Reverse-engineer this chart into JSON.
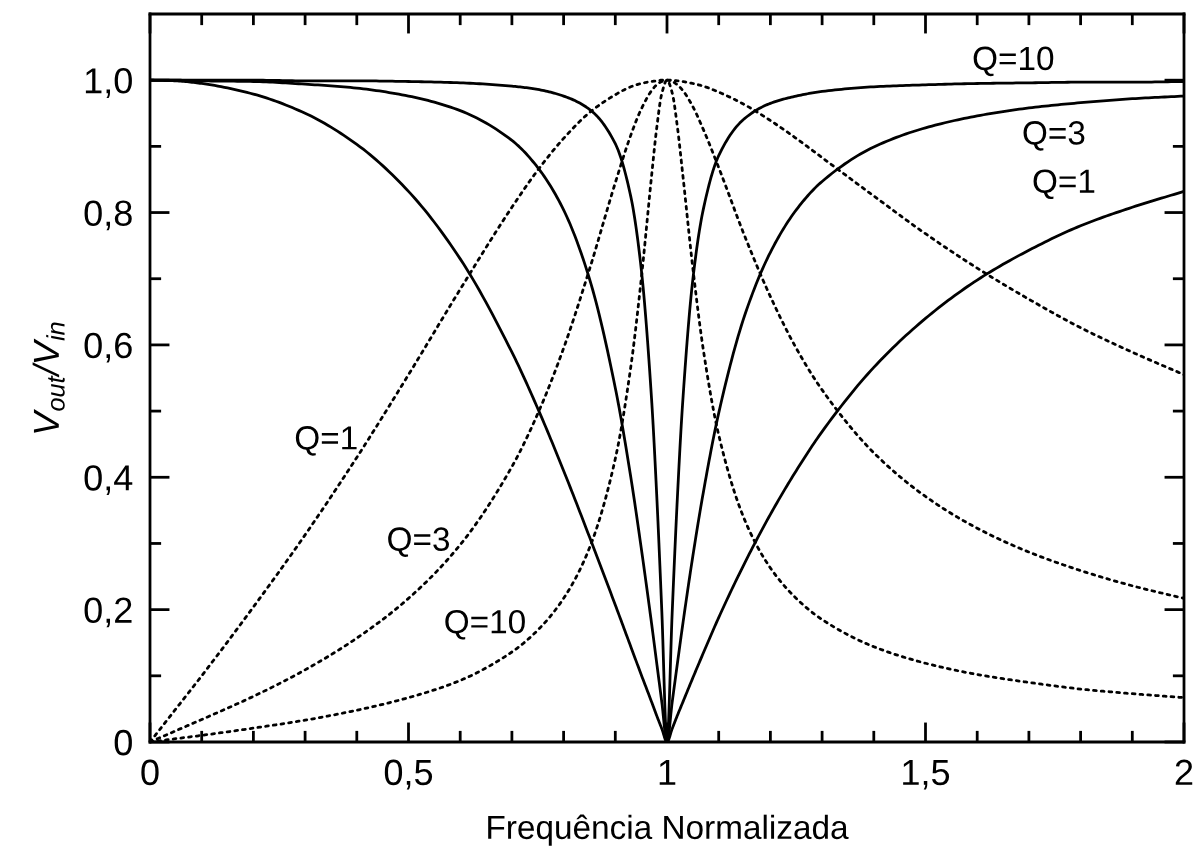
{
  "chart_data": {
    "type": "line",
    "xlabel": "Frequência Normalizada",
    "ylabel": "V$_{out}$/V$_{in}$",
    "xlim": [
      0,
      2
    ],
    "ylim": [
      0,
      1.1
    ],
    "xticks": [
      0,
      {
        "value": 0.1,
        "label": null
      },
      {
        "value": 0.2,
        "label": null
      },
      {
        "value": 0.3,
        "label": null
      },
      {
        "value": 0.4,
        "label": null
      },
      {
        "value": 0.5,
        "label": "0,5"
      },
      {
        "value": 0.6,
        "label": null
      },
      {
        "value": 0.7,
        "label": null
      },
      {
        "value": 0.8,
        "label": null
      },
      {
        "value": 0.9,
        "label": null
      },
      1,
      {
        "value": 1.1,
        "label": null
      },
      {
        "value": 1.2,
        "label": null
      },
      {
        "value": 1.3,
        "label": null
      },
      {
        "value": 1.4,
        "label": null
      },
      {
        "value": 1.5,
        "label": "1,5"
      },
      {
        "value": 1.6,
        "label": null
      },
      {
        "value": 1.7,
        "label": null
      },
      {
        "value": 1.8,
        "label": null
      },
      {
        "value": 1.9,
        "label": null
      },
      2
    ],
    "yticks": [
      0,
      {
        "value": 0.1,
        "label": null
      },
      {
        "value": 0.2,
        "label": "0,2"
      },
      {
        "value": 0.3,
        "label": null
      },
      {
        "value": 0.4,
        "label": "0,4"
      },
      {
        "value": 0.5,
        "label": null
      },
      {
        "value": 0.6,
        "label": "0,6"
      },
      {
        "value": 0.7,
        "label": null
      },
      {
        "value": 0.8,
        "label": "0,8"
      },
      {
        "value": 0.9,
        "label": null
      },
      {
        "value": 1.0,
        "label": "1,0"
      }
    ],
    "x": [
      0,
      0.05,
      0.1,
      0.2,
      0.3,
      0.4,
      0.5,
      0.6,
      0.7,
      0.75,
      0.8,
      0.85,
      0.9,
      0.93,
      0.95,
      0.97,
      0.98,
      0.99,
      1.0,
      1.01,
      1.02,
      1.03,
      1.05,
      1.07,
      1.1,
      1.15,
      1.2,
      1.25,
      1.3,
      1.4,
      1.5,
      1.6,
      1.7,
      1.8,
      1.9,
      2.0
    ],
    "series": [
      {
        "name": "Q=1",
        "color": "#000000",
        "line_style": "solid",
        "values": [
          1,
          0.999,
          0.995,
          0.979,
          0.95,
          0.903,
          0.832,
          0.73,
          0.589,
          0.504,
          0.41,
          0.31,
          0.207,
          0.144,
          0.102,
          0.061,
          0.04,
          0.02,
          0,
          0.02,
          0.04,
          0.059,
          0.097,
          0.134,
          0.188,
          0.27,
          0.344,
          0.41,
          0.469,
          0.566,
          0.64,
          0.698,
          0.743,
          0.78,
          0.808,
          0.832
        ]
      },
      {
        "name": "Q=3",
        "color": "#000000",
        "line_style": "solid",
        "values": [
          1,
          1,
          0.999,
          0.998,
          0.994,
          0.988,
          0.976,
          0.954,
          0.909,
          0.868,
          0.804,
          0.7,
          0.535,
          0.4,
          0.294,
          0.18,
          0.12,
          0.06,
          0,
          0.06,
          0.118,
          0.175,
          0.281,
          0.376,
          0.497,
          0.644,
          0.74,
          0.804,
          0.847,
          0.899,
          0.928,
          0.946,
          0.958,
          0.966,
          0.972,
          0.976
        ]
      },
      {
        "name": "Q=10",
        "color": "#000000",
        "line_style": "solid",
        "values": [
          1,
          1,
          1,
          1,
          0.999,
          0.999,
          0.998,
          0.996,
          0.991,
          0.986,
          0.976,
          0.956,
          0.904,
          0.824,
          0.716,
          0.52,
          0.375,
          0.197,
          0,
          0.195,
          0.368,
          0.509,
          0.699,
          0.804,
          0.886,
          0.942,
          0.965,
          0.976,
          0.983,
          0.99,
          0.993,
          0.995,
          0.996,
          0.997,
          0.997,
          0.998
        ]
      },
      {
        "name": "Q=1",
        "color": "#000000",
        "line_style": "dotted",
        "values": [
          0,
          0.05,
          0.1,
          0.204,
          0.313,
          0.43,
          0.555,
          0.684,
          0.808,
          0.864,
          0.912,
          0.951,
          0.978,
          0.99,
          0.995,
          0.998,
          0.999,
          1,
          1,
          1,
          0.999,
          0.998,
          0.995,
          0.991,
          0.982,
          0.963,
          0.939,
          0.912,
          0.883,
          0.825,
          0.768,
          0.716,
          0.669,
          0.626,
          0.589,
          0.555
        ]
      },
      {
        "name": "Q=3",
        "color": "#000000",
        "line_style": "dotted",
        "values": [
          0,
          0.017,
          0.034,
          0.069,
          0.109,
          0.157,
          0.217,
          0.298,
          0.416,
          0.496,
          0.595,
          0.714,
          0.845,
          0.917,
          0.956,
          0.984,
          0.993,
          0.998,
          1,
          0.998,
          0.993,
          0.985,
          0.96,
          0.926,
          0.868,
          0.765,
          0.673,
          0.595,
          0.532,
          0.437,
          0.371,
          0.323,
          0.287,
          0.259,
          0.236,
          0.217
        ]
      },
      {
        "name": "Q=10",
        "color": "#000000",
        "line_style": "dotted",
        "values": [
          0,
          0.005,
          0.01,
          0.021,
          0.033,
          0.048,
          0.067,
          0.093,
          0.136,
          0.169,
          0.217,
          0.293,
          0.428,
          0.567,
          0.698,
          0.854,
          0.927,
          0.98,
          1,
          0.981,
          0.93,
          0.861,
          0.716,
          0.594,
          0.464,
          0.336,
          0.263,
          0.217,
          0.185,
          0.144,
          0.119,
          0.102,
          0.09,
          0.08,
          0.073,
          0.067
        ]
      }
    ]
  }
}
